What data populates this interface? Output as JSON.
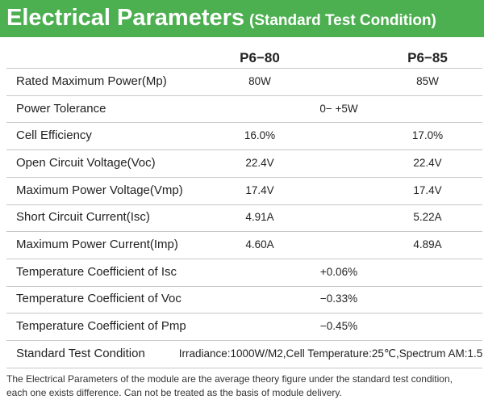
{
  "header": {
    "title": "Electrical Parameters",
    "subtitle": "(Standard Test Condition)"
  },
  "table": {
    "columns": [
      "P6−80",
      "P6−85"
    ],
    "rows": [
      {
        "label": "Rated Maximum Power(Mp)",
        "values": [
          "80W",
          "85W"
        ]
      },
      {
        "label": "Power Tolerance",
        "values": [
          "0− +5W"
        ]
      },
      {
        "label": "Cell Efficiency",
        "values": [
          "16.0%",
          "17.0%"
        ]
      },
      {
        "label": "Open Circuit Voltage(Voc)",
        "values": [
          "22.4V",
          "22.4V"
        ]
      },
      {
        "label": "Maximum Power Voltage(Vmp)",
        "values": [
          "17.4V",
          "17.4V"
        ]
      },
      {
        "label": "Short Circuit Current(Isc)",
        "values": [
          "4.91A",
          "5.22A"
        ]
      },
      {
        "label": "Maximum Power Current(Imp)",
        "values": [
          "4.60A",
          "4.89A"
        ]
      },
      {
        "label": "Temperature Coefficient of Isc",
        "values": [
          "+0.06%"
        ]
      },
      {
        "label": "Temperature Coefficient of Voc",
        "values": [
          "−0.33%"
        ]
      },
      {
        "label": "Temperature Coefficient of Pmp",
        "values": [
          "−0.45%"
        ]
      },
      {
        "label": "Standard Test Condition",
        "values": [
          "Irradiance:1000W/M2,Cell Temperature:25℃,Spectrum AM:1.5"
        ]
      }
    ]
  },
  "footnote": [
    "The Electrical Parameters of the module are the average theory figure under the standard test condition,",
    "each one exists difference. Can not be treated as the basis of module delivery."
  ]
}
